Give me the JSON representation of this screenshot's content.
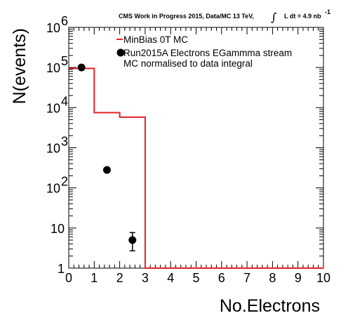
{
  "header": {
    "experiment_text": "CMS Work in Progress 2015, Data/MC 13 TeV,",
    "integral_symbol": "∫",
    "lumi_text": "L dt = 4.9 nb",
    "lumi_exponent": "-1"
  },
  "chart_data": {
    "type": "histogram",
    "xlabel": "No.Electrons",
    "ylabel": "N(events)",
    "xlim": [
      0,
      10
    ],
    "ylim": [
      1,
      1000000
    ],
    "yscale": "log",
    "grid": false,
    "legend_position": "top-right",
    "x_ticks": [
      "0",
      "1",
      "2",
      "3",
      "4",
      "5",
      "6",
      "7",
      "8",
      "9",
      "10"
    ],
    "y_ticks": [
      {
        "value": 1,
        "base": "1",
        "exp": ""
      },
      {
        "value": 10,
        "base": "10",
        "exp": ""
      },
      {
        "value": 100,
        "base": "10",
        "exp": "2"
      },
      {
        "value": 1000,
        "base": "10",
        "exp": "3"
      },
      {
        "value": 10000,
        "base": "10",
        "exp": "4"
      },
      {
        "value": 100000,
        "base": "10",
        "exp": "5"
      },
      {
        "value": 1000000,
        "base": "10",
        "exp": "6"
      }
    ],
    "series": [
      {
        "name": "MinBias 0T MC",
        "style": "step",
        "color": "#e8202a",
        "bins": [
          {
            "x0": 0,
            "x1": 1,
            "value": 95000
          },
          {
            "x0": 1,
            "x1": 2,
            "value": 7500
          },
          {
            "x0": 2,
            "x1": 3,
            "value": 5800
          },
          {
            "x0": 3,
            "x1": 10,
            "value": 1
          }
        ]
      },
      {
        "name": "Run2015A Electrons EGammma stream",
        "style": "points",
        "color": "#000000",
        "points": [
          {
            "x": 0.5,
            "y": 100000,
            "err_low": 0,
            "err_high": 0
          },
          {
            "x": 1.5,
            "y": 280,
            "err_low": 0,
            "err_high": 0
          },
          {
            "x": 2.5,
            "y": 5,
            "err_low": 2.3,
            "err_high": 2.7
          }
        ]
      }
    ],
    "legend_note": "MC normalised to data integral"
  }
}
